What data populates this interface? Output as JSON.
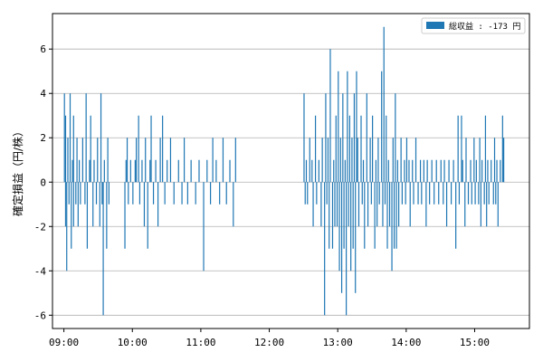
{
  "chart_data": {
    "type": "bar",
    "title": "",
    "xlabel": "",
    "ylabel": "確定損益（円/株）",
    "ylim": [
      -6.6,
      7.6
    ],
    "xlim": [
      "08:50",
      "15:48"
    ],
    "grid": "horizontal",
    "bar_color": "#1f77b4",
    "legend": {
      "label": "総収益 : -173 円",
      "placement": "top-right"
    },
    "x_ticks": [
      "09:00",
      "10:00",
      "11:00",
      "12:00",
      "13:00",
      "14:00",
      "15:00"
    ],
    "y_ticks": [
      -6,
      -4,
      -2,
      0,
      2,
      4,
      6
    ],
    "series": [
      {
        "name": "総収益 : -173 円",
        "points": [
          [
            "09:00",
            4
          ],
          [
            "09:01",
            -2
          ],
          [
            "09:01",
            3
          ],
          [
            "09:02",
            -4
          ],
          [
            "09:03",
            2
          ],
          [
            "09:04",
            -1
          ],
          [
            "09:05",
            4
          ],
          [
            "09:06",
            -3
          ],
          [
            "09:07",
            1
          ],
          [
            "09:08",
            -2
          ],
          [
            "09:08",
            3
          ],
          [
            "09:10",
            -1
          ],
          [
            "09:11",
            2
          ],
          [
            "09:12",
            -2
          ],
          [
            "09:13",
            1
          ],
          [
            "09:14",
            -1
          ],
          [
            "09:16",
            2
          ],
          [
            "09:18",
            -1
          ],
          [
            "09:19",
            4
          ],
          [
            "09:20",
            -3
          ],
          [
            "09:22",
            1
          ],
          [
            "09:23",
            3
          ],
          [
            "09:25",
            -2
          ],
          [
            "09:26",
            1
          ],
          [
            "09:28",
            -1
          ],
          [
            "09:29",
            2
          ],
          [
            "09:31",
            -2
          ],
          [
            "09:32",
            4
          ],
          [
            "09:33",
            -1
          ],
          [
            "09:34",
            -6
          ],
          [
            "09:35",
            1
          ],
          [
            "09:37",
            -3
          ],
          [
            "09:38",
            2
          ],
          [
            "09:39",
            -1
          ],
          [
            "09:53",
            -3
          ],
          [
            "09:54",
            1
          ],
          [
            "09:55",
            2
          ],
          [
            "09:56",
            -1
          ],
          [
            "09:58",
            1
          ],
          [
            "10:00",
            -1
          ],
          [
            "10:02",
            1
          ],
          [
            "10:03",
            2
          ],
          [
            "10:05",
            3
          ],
          [
            "10:06",
            -1
          ],
          [
            "10:08",
            1
          ],
          [
            "10:10",
            -2
          ],
          [
            "10:11",
            2
          ],
          [
            "10:13",
            -3
          ],
          [
            "10:15",
            1
          ],
          [
            "10:16",
            3
          ],
          [
            "10:18",
            -1
          ],
          [
            "10:20",
            1
          ],
          [
            "10:22",
            -2
          ],
          [
            "10:24",
            2
          ],
          [
            "10:26",
            3
          ],
          [
            "10:28",
            -1
          ],
          [
            "10:30",
            1
          ],
          [
            "10:33",
            2
          ],
          [
            "10:36",
            -1
          ],
          [
            "10:40",
            1
          ],
          [
            "10:43",
            -1
          ],
          [
            "10:45",
            2
          ],
          [
            "10:48",
            -1
          ],
          [
            "10:51",
            1
          ],
          [
            "10:55",
            -1
          ],
          [
            "10:58",
            1
          ],
          [
            "11:02",
            -4
          ],
          [
            "11:05",
            1
          ],
          [
            "11:08",
            -1
          ],
          [
            "11:10",
            2
          ],
          [
            "11:13",
            1
          ],
          [
            "11:16",
            -1
          ],
          [
            "11:19",
            2
          ],
          [
            "11:22",
            -1
          ],
          [
            "11:25",
            1
          ],
          [
            "11:28",
            -2
          ],
          [
            "11:30",
            2
          ],
          [
            "12:30",
            4
          ],
          [
            "12:31",
            -1
          ],
          [
            "12:32",
            1
          ],
          [
            "12:33",
            -1
          ],
          [
            "12:35",
            2
          ],
          [
            "12:37",
            1
          ],
          [
            "12:38",
            -2
          ],
          [
            "12:40",
            3
          ],
          [
            "12:41",
            -1
          ],
          [
            "12:43",
            1
          ],
          [
            "12:45",
            -2
          ],
          [
            "12:46",
            2
          ],
          [
            "12:48",
            -6
          ],
          [
            "12:49",
            4
          ],
          [
            "12:50",
            -1
          ],
          [
            "12:51",
            2
          ],
          [
            "12:52",
            -3
          ],
          [
            "12:53",
            6
          ],
          [
            "12:55",
            -3
          ],
          [
            "12:56",
            1
          ],
          [
            "12:57",
            -2
          ],
          [
            "12:58",
            3
          ],
          [
            "12:59",
            -2
          ],
          [
            "13:00",
            5
          ],
          [
            "13:01",
            -4
          ],
          [
            "13:02",
            2
          ],
          [
            "13:03",
            -5
          ],
          [
            "13:04",
            4
          ],
          [
            "13:05",
            -3
          ],
          [
            "13:06",
            1
          ],
          [
            "13:07",
            -6
          ],
          [
            "13:08",
            5
          ],
          [
            "13:09",
            -2
          ],
          [
            "13:10",
            3
          ],
          [
            "13:11",
            -4
          ],
          [
            "13:12",
            2
          ],
          [
            "13:13",
            -3
          ],
          [
            "13:14",
            4
          ],
          [
            "13:15",
            -5
          ],
          [
            "13:16",
            5
          ],
          [
            "13:17",
            2
          ],
          [
            "13:18",
            -2
          ],
          [
            "13:20",
            3
          ],
          [
            "13:21",
            -1
          ],
          [
            "13:22",
            1
          ],
          [
            "13:23",
            -3
          ],
          [
            "13:25",
            4
          ],
          [
            "13:26",
            -2
          ],
          [
            "13:28",
            2
          ],
          [
            "13:29",
            -1
          ],
          [
            "13:30",
            3
          ],
          [
            "13:32",
            -3
          ],
          [
            "13:33",
            1
          ],
          [
            "13:34",
            -2
          ],
          [
            "13:35",
            2
          ],
          [
            "13:36",
            -1
          ],
          [
            "13:38",
            5
          ],
          [
            "13:39",
            -2
          ],
          [
            "13:40",
            7
          ],
          [
            "13:41",
            -1
          ],
          [
            "13:42",
            3
          ],
          [
            "13:43",
            -3
          ],
          [
            "13:44",
            1
          ],
          [
            "13:45",
            -2
          ],
          [
            "13:47",
            -4
          ],
          [
            "13:48",
            2
          ],
          [
            "13:49",
            -3
          ],
          [
            "13:50",
            4
          ],
          [
            "13:51",
            -3
          ],
          [
            "13:52",
            1
          ],
          [
            "13:53",
            -2
          ],
          [
            "13:55",
            2
          ],
          [
            "13:56",
            -1
          ],
          [
            "13:58",
            1
          ],
          [
            "13:59",
            -1
          ],
          [
            "14:00",
            2
          ],
          [
            "14:02",
            1
          ],
          [
            "14:03",
            -2
          ],
          [
            "14:05",
            1
          ],
          [
            "14:06",
            -1
          ],
          [
            "14:08",
            2
          ],
          [
            "14:10",
            -1
          ],
          [
            "14:12",
            1
          ],
          [
            "14:13",
            -1
          ],
          [
            "14:15",
            1
          ],
          [
            "14:17",
            -2
          ],
          [
            "14:18",
            1
          ],
          [
            "14:20",
            -1
          ],
          [
            "14:22",
            1
          ],
          [
            "14:24",
            -1
          ],
          [
            "14:26",
            1
          ],
          [
            "14:28",
            -1
          ],
          [
            "14:30",
            1
          ],
          [
            "14:32",
            -1
          ],
          [
            "14:33",
            1
          ],
          [
            "14:35",
            -2
          ],
          [
            "14:37",
            1
          ],
          [
            "14:39",
            -1
          ],
          [
            "14:41",
            1
          ],
          [
            "14:43",
            -3
          ],
          [
            "14:45",
            3
          ],
          [
            "14:46",
            -1
          ],
          [
            "14:48",
            3
          ],
          [
            "14:49",
            1
          ],
          [
            "14:51",
            -2
          ],
          [
            "14:52",
            2
          ],
          [
            "14:54",
            -1
          ],
          [
            "14:56",
            1
          ],
          [
            "14:57",
            -1
          ],
          [
            "14:59",
            2
          ],
          [
            "15:00",
            -1
          ],
          [
            "15:01",
            1
          ],
          [
            "15:03",
            -1
          ],
          [
            "15:04",
            2
          ],
          [
            "15:05",
            -2
          ],
          [
            "15:06",
            1
          ],
          [
            "15:08",
            -1
          ],
          [
            "15:09",
            3
          ],
          [
            "15:10",
            -2
          ],
          [
            "15:11",
            1
          ],
          [
            "15:12",
            -1
          ],
          [
            "15:14",
            1
          ],
          [
            "15:16",
            -1
          ],
          [
            "15:17",
            2
          ],
          [
            "15:18",
            -1
          ],
          [
            "15:19",
            1
          ],
          [
            "15:20",
            -2
          ],
          [
            "15:22",
            1
          ],
          [
            "15:24",
            3
          ],
          [
            "15:25",
            2
          ]
        ]
      }
    ]
  }
}
